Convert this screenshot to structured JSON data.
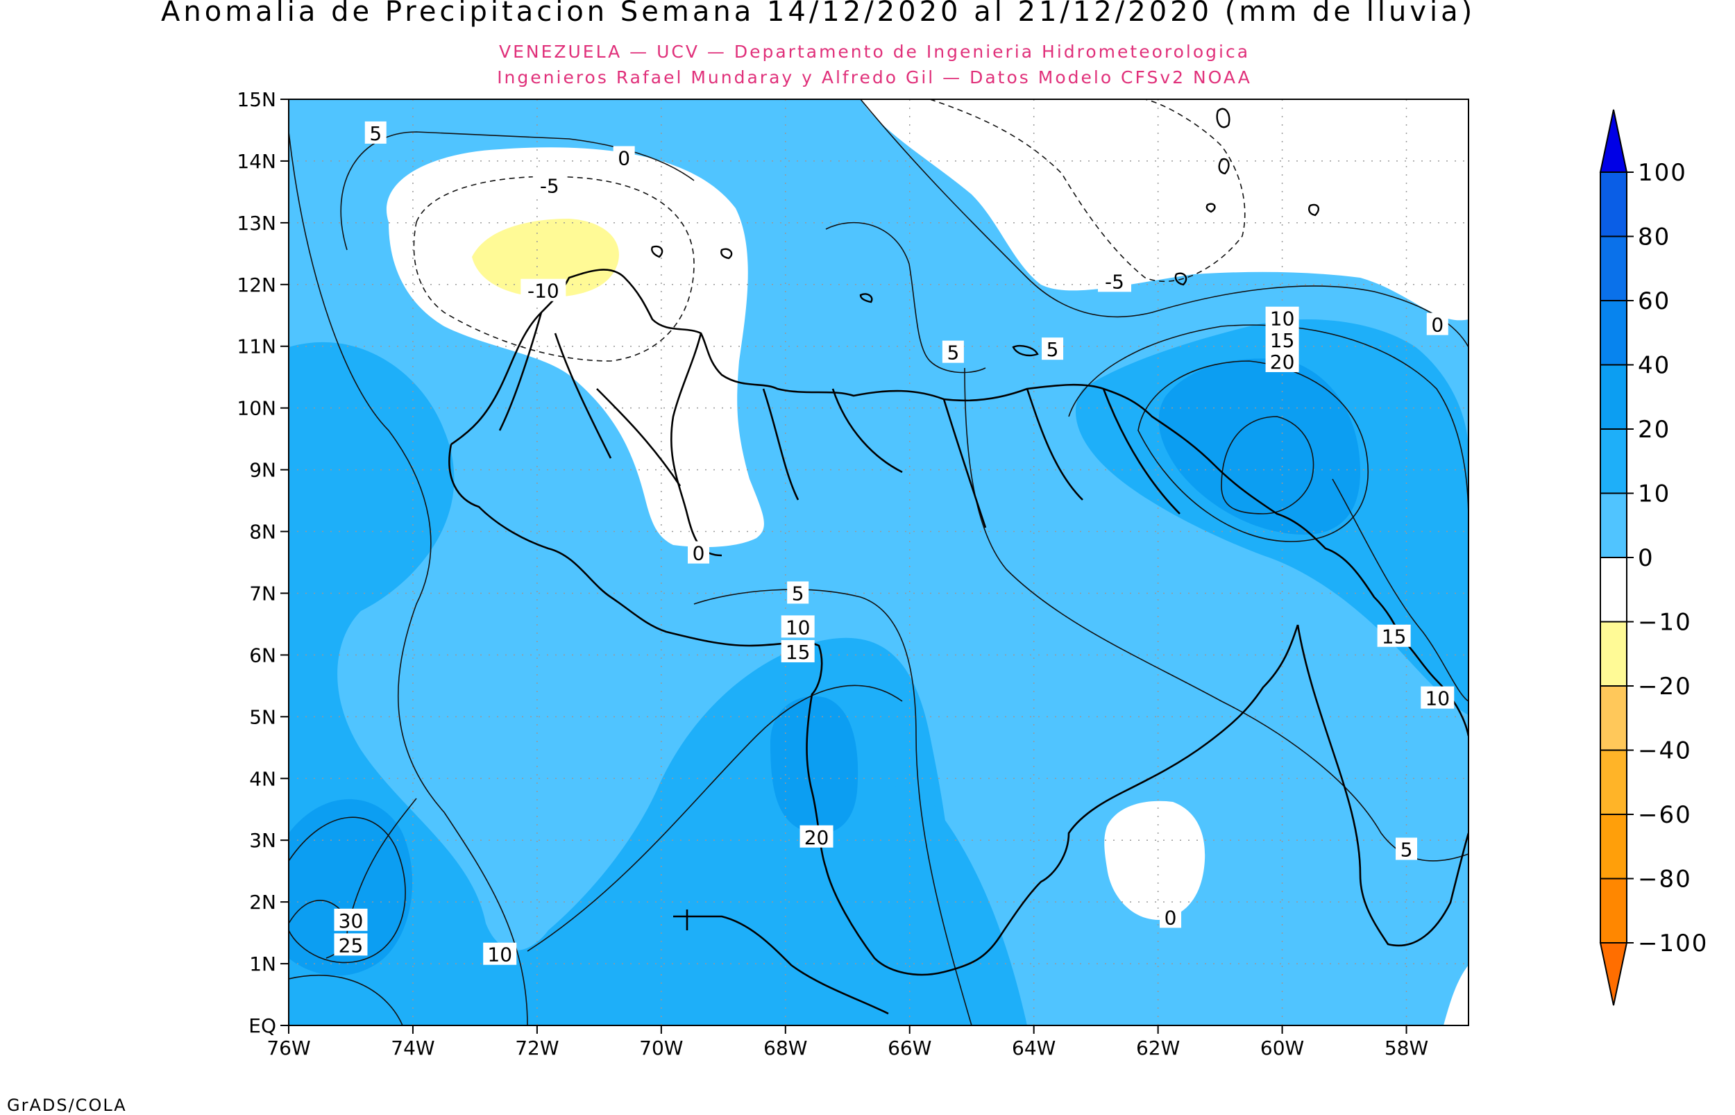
{
  "title": "Anomalia de Precipitacion Semana 14/12/2020 al 21/12/2020 (mm de lluvia)",
  "subtitle_1": "VENEZUELA — UCV — Departamento de Ingenieria Hidrometeorologica",
  "subtitle_2": "Ingenieros Rafael Mundaray y Alfredo Gil — Datos Modelo CFSv2 NOAA",
  "credit": "GrADS/COLA",
  "colors": {
    "subtitle": "#e0307a",
    "zero_to_10": "#50c4ff",
    "ten_to_20": "#1eaff9",
    "twenty_to_40": "#0c9ef2",
    "minus_10_to_0": "#ffffff",
    "minus_20_to_minus_10": "#fffa96"
  },
  "chart_data": {
    "type": "heatmap",
    "x_axis": {
      "ticks": [
        "76W",
        "74W",
        "72W",
        "70W",
        "68W",
        "66W",
        "64W",
        "62W",
        "60W",
        "58W"
      ],
      "range": [
        -76,
        -57
      ]
    },
    "y_axis": {
      "ticks": [
        "EQ",
        "1N",
        "2N",
        "3N",
        "4N",
        "5N",
        "6N",
        "7N",
        "8N",
        "9N",
        "10N",
        "11N",
        "12N",
        "13N",
        "14N",
        "15N"
      ],
      "range": [
        0,
        15
      ]
    },
    "colorbar": {
      "labels": [
        "100",
        "80",
        "60",
        "40",
        "20",
        "10",
        "0",
        "-10",
        "-20",
        "-40",
        "-60",
        "-80",
        "-100"
      ],
      "colors": [
        "#0000e6",
        "#0a5ee6",
        "#0a71ea",
        "#0784ee",
        "#0c9ef2",
        "#1eaff9",
        "#50c4ff",
        "#ffffff",
        "#fffa96",
        "#ffc85a",
        "#ffb428",
        "#ff9f0a",
        "#ff8700",
        "#ff6e00"
      ]
    },
    "contour_labels": [
      {
        "text": "5",
        "lon": -74.6,
        "lat": 14.45
      },
      {
        "text": "0",
        "lon": -70.6,
        "lat": 14.05
      },
      {
        "text": "-5",
        "lon": -71.8,
        "lat": 13.6
      },
      {
        "text": "-10",
        "lon": -71.9,
        "lat": 11.9
      },
      {
        "text": "5",
        "lon": -65.3,
        "lat": 10.9
      },
      {
        "text": "5",
        "lon": -63.7,
        "lat": 10.95
      },
      {
        "text": "-5",
        "lon": -62.7,
        "lat": 12.05
      },
      {
        "text": "10",
        "lon": -60.0,
        "lat": 11.45
      },
      {
        "text": "15",
        "lon": -60.0,
        "lat": 11.1
      },
      {
        "text": "20",
        "lon": -60.0,
        "lat": 10.75
      },
      {
        "text": "0",
        "lon": -57.5,
        "lat": 11.35
      },
      {
        "text": "0",
        "lon": -69.4,
        "lat": 7.65
      },
      {
        "text": "5",
        "lon": -67.8,
        "lat": 7.0
      },
      {
        "text": "10",
        "lon": -67.8,
        "lat": 6.45
      },
      {
        "text": "15",
        "lon": -67.8,
        "lat": 6.05
      },
      {
        "text": "15",
        "lon": -58.2,
        "lat": 6.3
      },
      {
        "text": "10",
        "lon": -57.5,
        "lat": 5.3
      },
      {
        "text": "20",
        "lon": -67.5,
        "lat": 3.05
      },
      {
        "text": "5",
        "lon": -58.0,
        "lat": 2.85
      },
      {
        "text": "30",
        "lon": -75.0,
        "lat": 1.7
      },
      {
        "text": "25",
        "lon": -75.0,
        "lat": 1.3
      },
      {
        "text": "10",
        "lon": -72.6,
        "lat": 1.15
      },
      {
        "text": "0",
        "lon": -61.8,
        "lat": 1.75
      }
    ]
  }
}
